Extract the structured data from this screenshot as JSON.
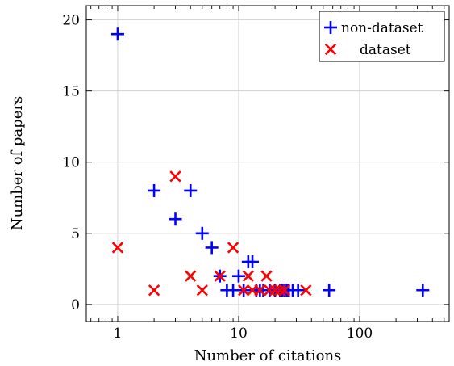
{
  "chart_data": {
    "type": "scatter",
    "title": "",
    "xlabel": "Number of citations",
    "ylabel": "Number of papers",
    "xscale": "log",
    "xlim": [
      0.55,
      550
    ],
    "ylim": [
      -1.2,
      21
    ],
    "x_ticks": [
      1,
      10,
      100
    ],
    "x_tick_labels": [
      "1",
      "10",
      "100"
    ],
    "y_ticks": [
      0,
      5,
      10,
      15,
      20
    ],
    "y_tick_labels": [
      "0",
      "5",
      "10",
      "15",
      "20"
    ],
    "grid": true,
    "legend_position": "top-right",
    "series": [
      {
        "name": "non-dataset",
        "marker": "plus",
        "color": "#0000ff",
        "points": [
          [
            1,
            19
          ],
          [
            2,
            8
          ],
          [
            3,
            6
          ],
          [
            4,
            8
          ],
          [
            5,
            5
          ],
          [
            6,
            4
          ],
          [
            7,
            2
          ],
          [
            8,
            1
          ],
          [
            9,
            1
          ],
          [
            10,
            2
          ],
          [
            11,
            1
          ],
          [
            12,
            3
          ],
          [
            13,
            3
          ],
          [
            14,
            1
          ],
          [
            15,
            1
          ],
          [
            16,
            1
          ],
          [
            18,
            1
          ],
          [
            20,
            1
          ],
          [
            22,
            1
          ],
          [
            23,
            1
          ],
          [
            24,
            1
          ],
          [
            25,
            1
          ],
          [
            26,
            1
          ],
          [
            28,
            1
          ],
          [
            31,
            1
          ],
          [
            56,
            1
          ],
          [
            333,
            1
          ]
        ]
      },
      {
        "name": "dataset",
        "marker": "x",
        "color": "#ff0000",
        "points": [
          [
            1,
            4
          ],
          [
            2,
            1
          ],
          [
            3,
            9
          ],
          [
            4,
            2
          ],
          [
            5,
            1
          ],
          [
            7,
            2
          ],
          [
            9,
            4
          ],
          [
            11,
            1
          ],
          [
            12,
            2
          ],
          [
            13,
            1
          ],
          [
            15,
            1
          ],
          [
            17,
            2
          ],
          [
            18,
            1
          ],
          [
            20,
            1
          ],
          [
            22,
            1
          ],
          [
            24,
            1
          ],
          [
            36,
            1
          ]
        ]
      }
    ]
  }
}
